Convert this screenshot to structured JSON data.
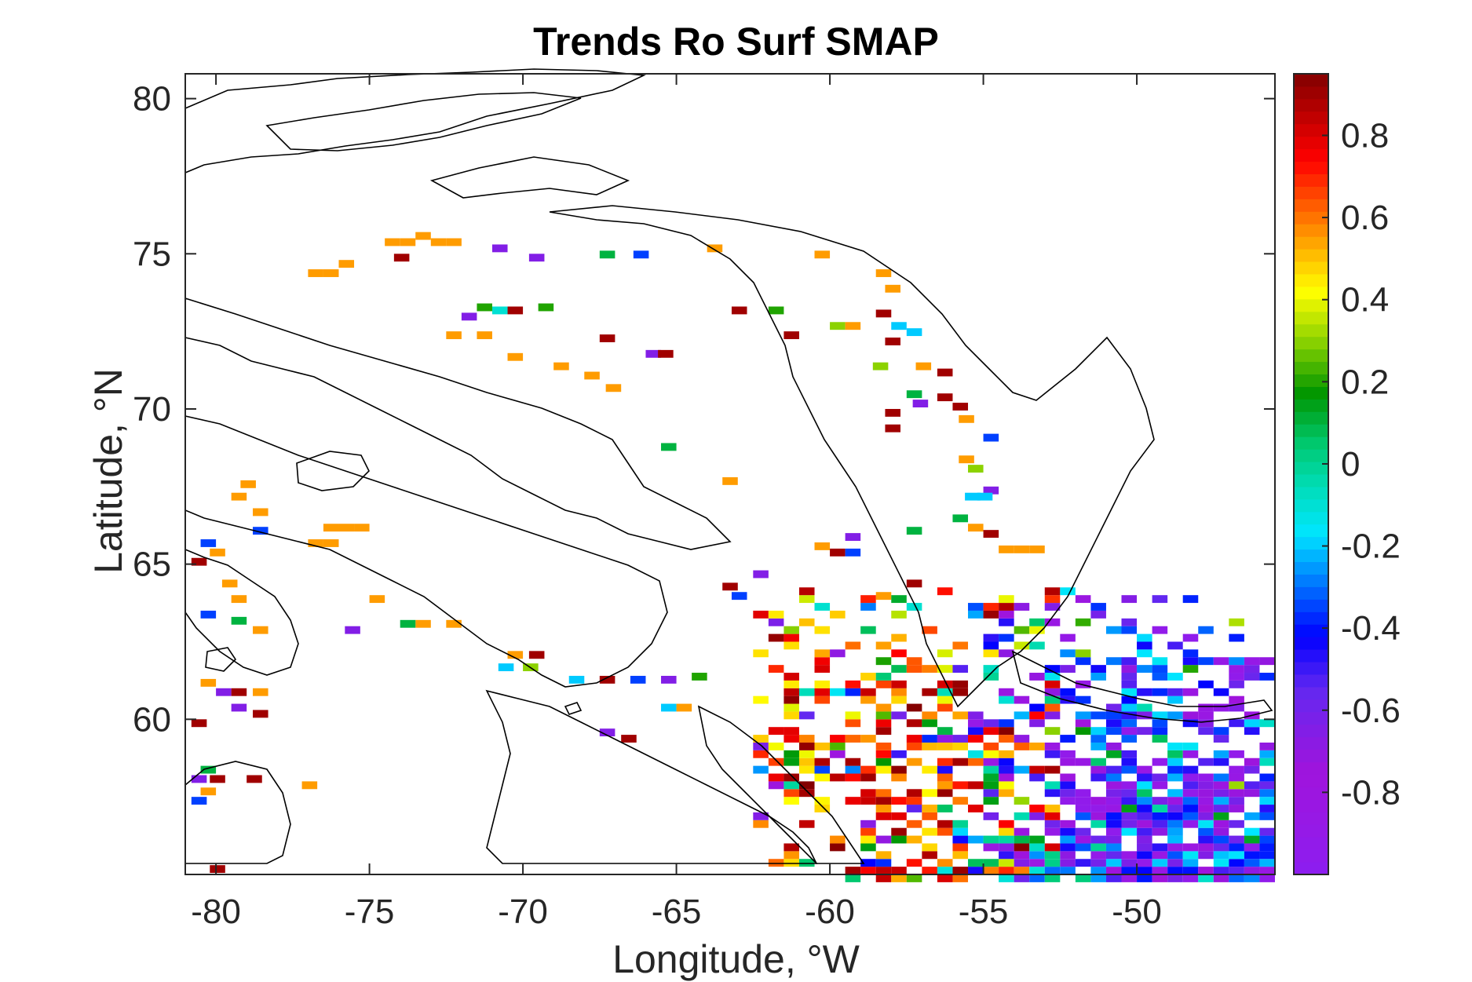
{
  "chart_data": {
    "type": "heatmap",
    "title": "Trends Ro Surf SMAP",
    "xlabel": "Longitude, °W",
    "ylabel": "Latitude, °N",
    "xlim": [
      -81,
      -45.5
    ],
    "ylim": [
      55,
      80.8
    ],
    "xticks": [
      -80,
      -75,
      -70,
      -65,
      -60,
      -55,
      -50
    ],
    "yticks": [
      60,
      65,
      70,
      75,
      80
    ],
    "colorbar": {
      "colormap": "jet-like (purple to dark red)",
      "range": [
        -1,
        0.95
      ],
      "ticks": [
        -0.8,
        -0.6,
        -0.4,
        -0.2,
        0,
        0.2,
        0.4,
        0.6,
        0.8
      ],
      "tick_labels": [
        "-0.8",
        "-0.6",
        "-0.4",
        "-0.2",
        "0",
        "0.2",
        "0.4",
        "0.6",
        "0.8"
      ]
    },
    "grid": false,
    "data_note": "Gridded trend values over Labrador Sea / Baffin Bay region; dense cluster in south-east (approx. -58 to -45.5 W, 55 to 64 N) dominated by negative (blue/purple) values, scattered positive (orange/red) cells along coasts; ~0.5 deg cells",
    "cells": [
      {
        "lon": -77,
        "lat": 74.5,
        "v": 0.55
      },
      {
        "lon": -76.5,
        "lat": 74.5,
        "v": 0.55
      },
      {
        "lon": -76,
        "lat": 74.8,
        "v": 0.55
      },
      {
        "lon": -74.5,
        "lat": 75.5,
        "v": 0.55
      },
      {
        "lon": -74,
        "lat": 75.5,
        "v": 0.55
      },
      {
        "lon": -73.5,
        "lat": 75.7,
        "v": 0.55
      },
      {
        "lon": -73,
        "lat": 75.5,
        "v": 0.55
      },
      {
        "lon": -72.5,
        "lat": 75.5,
        "v": 0.55
      },
      {
        "lon": -74.2,
        "lat": 75.0,
        "v": 0.9
      },
      {
        "lon": -71,
        "lat": 75.3,
        "v": -0.65
      },
      {
        "lon": -69.8,
        "lat": 75.0,
        "v": -0.65
      },
      {
        "lon": -67.5,
        "lat": 75.1,
        "v": 0.1
      },
      {
        "lon": -66.4,
        "lat": 75.1,
        "v": -0.35
      },
      {
        "lon": -64,
        "lat": 75.3,
        "v": 0.55
      },
      {
        "lon": -60.5,
        "lat": 75.1,
        "v": 0.55
      },
      {
        "lon": -71.5,
        "lat": 73.4,
        "v": 0.2
      },
      {
        "lon": -71,
        "lat": 73.3,
        "v": -0.1
      },
      {
        "lon": -70.5,
        "lat": 73.3,
        "v": 0.9
      },
      {
        "lon": -69.5,
        "lat": 73.4,
        "v": 0.2
      },
      {
        "lon": -72,
        "lat": 73.1,
        "v": -0.65
      },
      {
        "lon": -72.5,
        "lat": 72.5,
        "v": 0.55
      },
      {
        "lon": -71.5,
        "lat": 72.5,
        "v": 0.55
      },
      {
        "lon": -70.5,
        "lat": 71.8,
        "v": 0.55
      },
      {
        "lon": -69,
        "lat": 71.5,
        "v": 0.55
      },
      {
        "lon": -68,
        "lat": 71.2,
        "v": 0.55
      },
      {
        "lon": -67.3,
        "lat": 70.8,
        "v": 0.55
      },
      {
        "lon": -66,
        "lat": 71.9,
        "v": -0.65
      },
      {
        "lon": -65.6,
        "lat": 71.9,
        "v": 0.9
      },
      {
        "lon": -67.5,
        "lat": 72.4,
        "v": 0.9
      },
      {
        "lon": -63.2,
        "lat": 73.3,
        "v": 0.9
      },
      {
        "lon": -62,
        "lat": 73.3,
        "v": 0.2
      },
      {
        "lon": -60,
        "lat": 72.8,
        "v": 0.3
      },
      {
        "lon": -59.5,
        "lat": 72.8,
        "v": 0.55
      },
      {
        "lon": -61.5,
        "lat": 72.5,
        "v": 0.9
      },
      {
        "lon": -58.5,
        "lat": 73.2,
        "v": 0.9
      },
      {
        "lon": -58,
        "lat": 72.8,
        "v": -0.2
      },
      {
        "lon": -57.5,
        "lat": 72.6,
        "v": -0.2
      },
      {
        "lon": -58.2,
        "lat": 72.3,
        "v": 0.9
      },
      {
        "lon": -58.5,
        "lat": 74.5,
        "v": 0.55
      },
      {
        "lon": -58.2,
        "lat": 74.0,
        "v": 0.55
      },
      {
        "lon": -58.6,
        "lat": 71.5,
        "v": 0.3
      },
      {
        "lon": -57.2,
        "lat": 71.5,
        "v": 0.55
      },
      {
        "lon": -56.5,
        "lat": 71.3,
        "v": 0.9
      },
      {
        "lon": -56.5,
        "lat": 70.5,
        "v": 0.9
      },
      {
        "lon": -56,
        "lat": 70.2,
        "v": 0.9
      },
      {
        "lon": -55.8,
        "lat": 69.8,
        "v": 0.55
      },
      {
        "lon": -57.5,
        "lat": 70.6,
        "v": 0.1
      },
      {
        "lon": -57.3,
        "lat": 70.3,
        "v": -0.65
      },
      {
        "lon": -58.2,
        "lat": 70.0,
        "v": 0.9
      },
      {
        "lon": -58.2,
        "lat": 69.5,
        "v": 0.9
      },
      {
        "lon": -55,
        "lat": 69.2,
        "v": -0.35
      },
      {
        "lon": -55.8,
        "lat": 68.5,
        "v": 0.55
      },
      {
        "lon": -55.5,
        "lat": 68.2,
        "v": 0.3
      },
      {
        "lon": -55,
        "lat": 67.5,
        "v": -0.65
      },
      {
        "lon": -55.6,
        "lat": 67.3,
        "v": -0.2
      },
      {
        "lon": -55.2,
        "lat": 67.3,
        "v": -0.2
      },
      {
        "lon": -56,
        "lat": 66.6,
        "v": 0.1
      },
      {
        "lon": -55.5,
        "lat": 66.3,
        "v": 0.55
      },
      {
        "lon": -55,
        "lat": 66.1,
        "v": 0.9
      },
      {
        "lon": -57.5,
        "lat": 66.2,
        "v": 0.1
      },
      {
        "lon": -54.5,
        "lat": 65.6,
        "v": 0.55
      },
      {
        "lon": -54,
        "lat": 65.6,
        "v": 0.55
      },
      {
        "lon": -53.5,
        "lat": 65.6,
        "v": 0.55
      },
      {
        "lon": -65.5,
        "lat": 68.9,
        "v": 0.1
      },
      {
        "lon": -63.5,
        "lat": 67.8,
        "v": 0.55
      },
      {
        "lon": -59.5,
        "lat": 66.0,
        "v": -0.65
      },
      {
        "lon": -60,
        "lat": 65.5,
        "v": 0.9
      },
      {
        "lon": -59.5,
        "lat": 65.5,
        "v": -0.35
      },
      {
        "lon": -60.5,
        "lat": 65.7,
        "v": 0.55
      },
      {
        "lon": -63.5,
        "lat": 64.4,
        "v": 0.9
      },
      {
        "lon": -62.5,
        "lat": 64.8,
        "v": -0.65
      },
      {
        "lon": -63.2,
        "lat": 64.1,
        "v": -0.35
      },
      {
        "lon": -57.5,
        "lat": 64.5,
        "v": 0.9
      },
      {
        "lon": -58.5,
        "lat": 64.1,
        "v": 0.55
      },
      {
        "lon": -79.2,
        "lat": 67.7,
        "v": 0.55
      },
      {
        "lon": -79.5,
        "lat": 67.3,
        "v": 0.55
      },
      {
        "lon": -78.8,
        "lat": 66.8,
        "v": 0.55
      },
      {
        "lon": -78.8,
        "lat": 66.2,
        "v": -0.35
      },
      {
        "lon": -76.5,
        "lat": 66.3,
        "v": 0.55
      },
      {
        "lon": -76,
        "lat": 66.3,
        "v": 0.55
      },
      {
        "lon": -75.5,
        "lat": 66.3,
        "v": 0.55
      },
      {
        "lon": -77,
        "lat": 65.8,
        "v": 0.55
      },
      {
        "lon": -76.5,
        "lat": 65.8,
        "v": 0.55
      },
      {
        "lon": -75,
        "lat": 64.0,
        "v": 0.55
      },
      {
        "lon": -73.5,
        "lat": 63.2,
        "v": 0.55
      },
      {
        "lon": -72.5,
        "lat": 63.2,
        "v": 0.55
      },
      {
        "lon": -74,
        "lat": 63.2,
        "v": 0.1
      },
      {
        "lon": -75.8,
        "lat": 63.0,
        "v": -0.65
      },
      {
        "lon": -80.5,
        "lat": 65.8,
        "v": -0.35
      },
      {
        "lon": -80.2,
        "lat": 65.5,
        "v": 0.55
      },
      {
        "lon": -80.8,
        "lat": 65.2,
        "v": 0.9
      },
      {
        "lon": -79.8,
        "lat": 64.5,
        "v": 0.55
      },
      {
        "lon": -79.5,
        "lat": 64.0,
        "v": 0.55
      },
      {
        "lon": -80.5,
        "lat": 63.5,
        "v": -0.35
      },
      {
        "lon": -79.5,
        "lat": 63.3,
        "v": 0.1
      },
      {
        "lon": -78.8,
        "lat": 63.0,
        "v": 0.55
      },
      {
        "lon": -80.5,
        "lat": 61.3,
        "v": 0.55
      },
      {
        "lon": -80,
        "lat": 61.0,
        "v": -0.65
      },
      {
        "lon": -79.5,
        "lat": 61.0,
        "v": 0.9
      },
      {
        "lon": -78.8,
        "lat": 61.0,
        "v": 0.55
      },
      {
        "lon": -79.5,
        "lat": 60.5,
        "v": -0.65
      },
      {
        "lon": -78.8,
        "lat": 60.3,
        "v": 0.9
      },
      {
        "lon": -80.8,
        "lat": 60.0,
        "v": 0.9
      },
      {
        "lon": -80.5,
        "lat": 58.5,
        "v": 0.1
      },
      {
        "lon": -80.8,
        "lat": 58.2,
        "v": -0.65
      },
      {
        "lon": -80.2,
        "lat": 58.2,
        "v": 0.9
      },
      {
        "lon": -79,
        "lat": 58.2,
        "v": 0.9
      },
      {
        "lon": -80.5,
        "lat": 57.8,
        "v": 0.55
      },
      {
        "lon": -80.8,
        "lat": 57.5,
        "v": -0.35
      },
      {
        "lon": -80.2,
        "lat": 55.3,
        "v": 0.9
      },
      {
        "lon": -77.2,
        "lat": 58.0,
        "v": 0.55
      },
      {
        "lon": -70.5,
        "lat": 62.2,
        "v": 0.55
      },
      {
        "lon": -69.8,
        "lat": 62.2,
        "v": 0.9
      },
      {
        "lon": -70.8,
        "lat": 61.8,
        "v": -0.2
      },
      {
        "lon": -70,
        "lat": 61.8,
        "v": 0.3
      },
      {
        "lon": -68.5,
        "lat": 61.4,
        "v": -0.2
      },
      {
        "lon": -67.5,
        "lat": 61.4,
        "v": 0.9
      },
      {
        "lon": -66.5,
        "lat": 61.4,
        "v": -0.35
      },
      {
        "lon": -65.5,
        "lat": 61.4,
        "v": -0.65
      },
      {
        "lon": -64.5,
        "lat": 61.5,
        "v": 0.2
      },
      {
        "lon": -65.5,
        "lat": 60.5,
        "v": -0.2
      },
      {
        "lon": -65,
        "lat": 60.5,
        "v": 0.55
      },
      {
        "lon": -67.5,
        "lat": 59.7,
        "v": -0.65
      },
      {
        "lon": -66.8,
        "lat": 59.5,
        "v": 0.9
      }
    ],
    "dense_region": {
      "lon_range": [
        -62.5,
        -45.5
      ],
      "lat_range": [
        55,
        64.5
      ],
      "dominant_values": "western part (-62.5 to -55) mostly positive 0.5–0.95 mixed; eastern part (-53 to -45.5) mostly -0.2 to -0.9"
    }
  }
}
